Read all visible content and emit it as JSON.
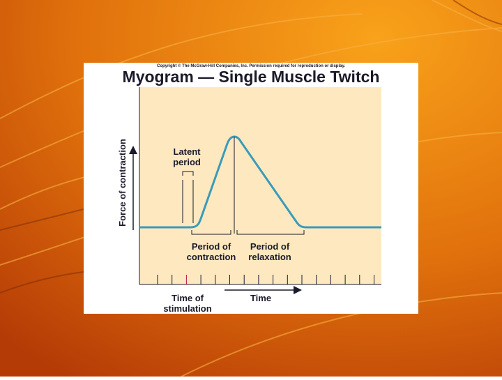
{
  "slide": {
    "copyright": "Copyright © The McGraw-Hill Companies, Inc. Permission required for reproduction or display.",
    "title": "Myogram — Single Muscle Twitch",
    "y_label": "Force of contraction",
    "latent_period": [
      "Latent",
      "period"
    ],
    "period_contraction": [
      "Period of",
      "contraction"
    ],
    "period_relaxation": [
      "Period of",
      "relaxation"
    ],
    "time_stimulation": [
      "Time of",
      "stimulation"
    ],
    "time": "Time"
  }
}
